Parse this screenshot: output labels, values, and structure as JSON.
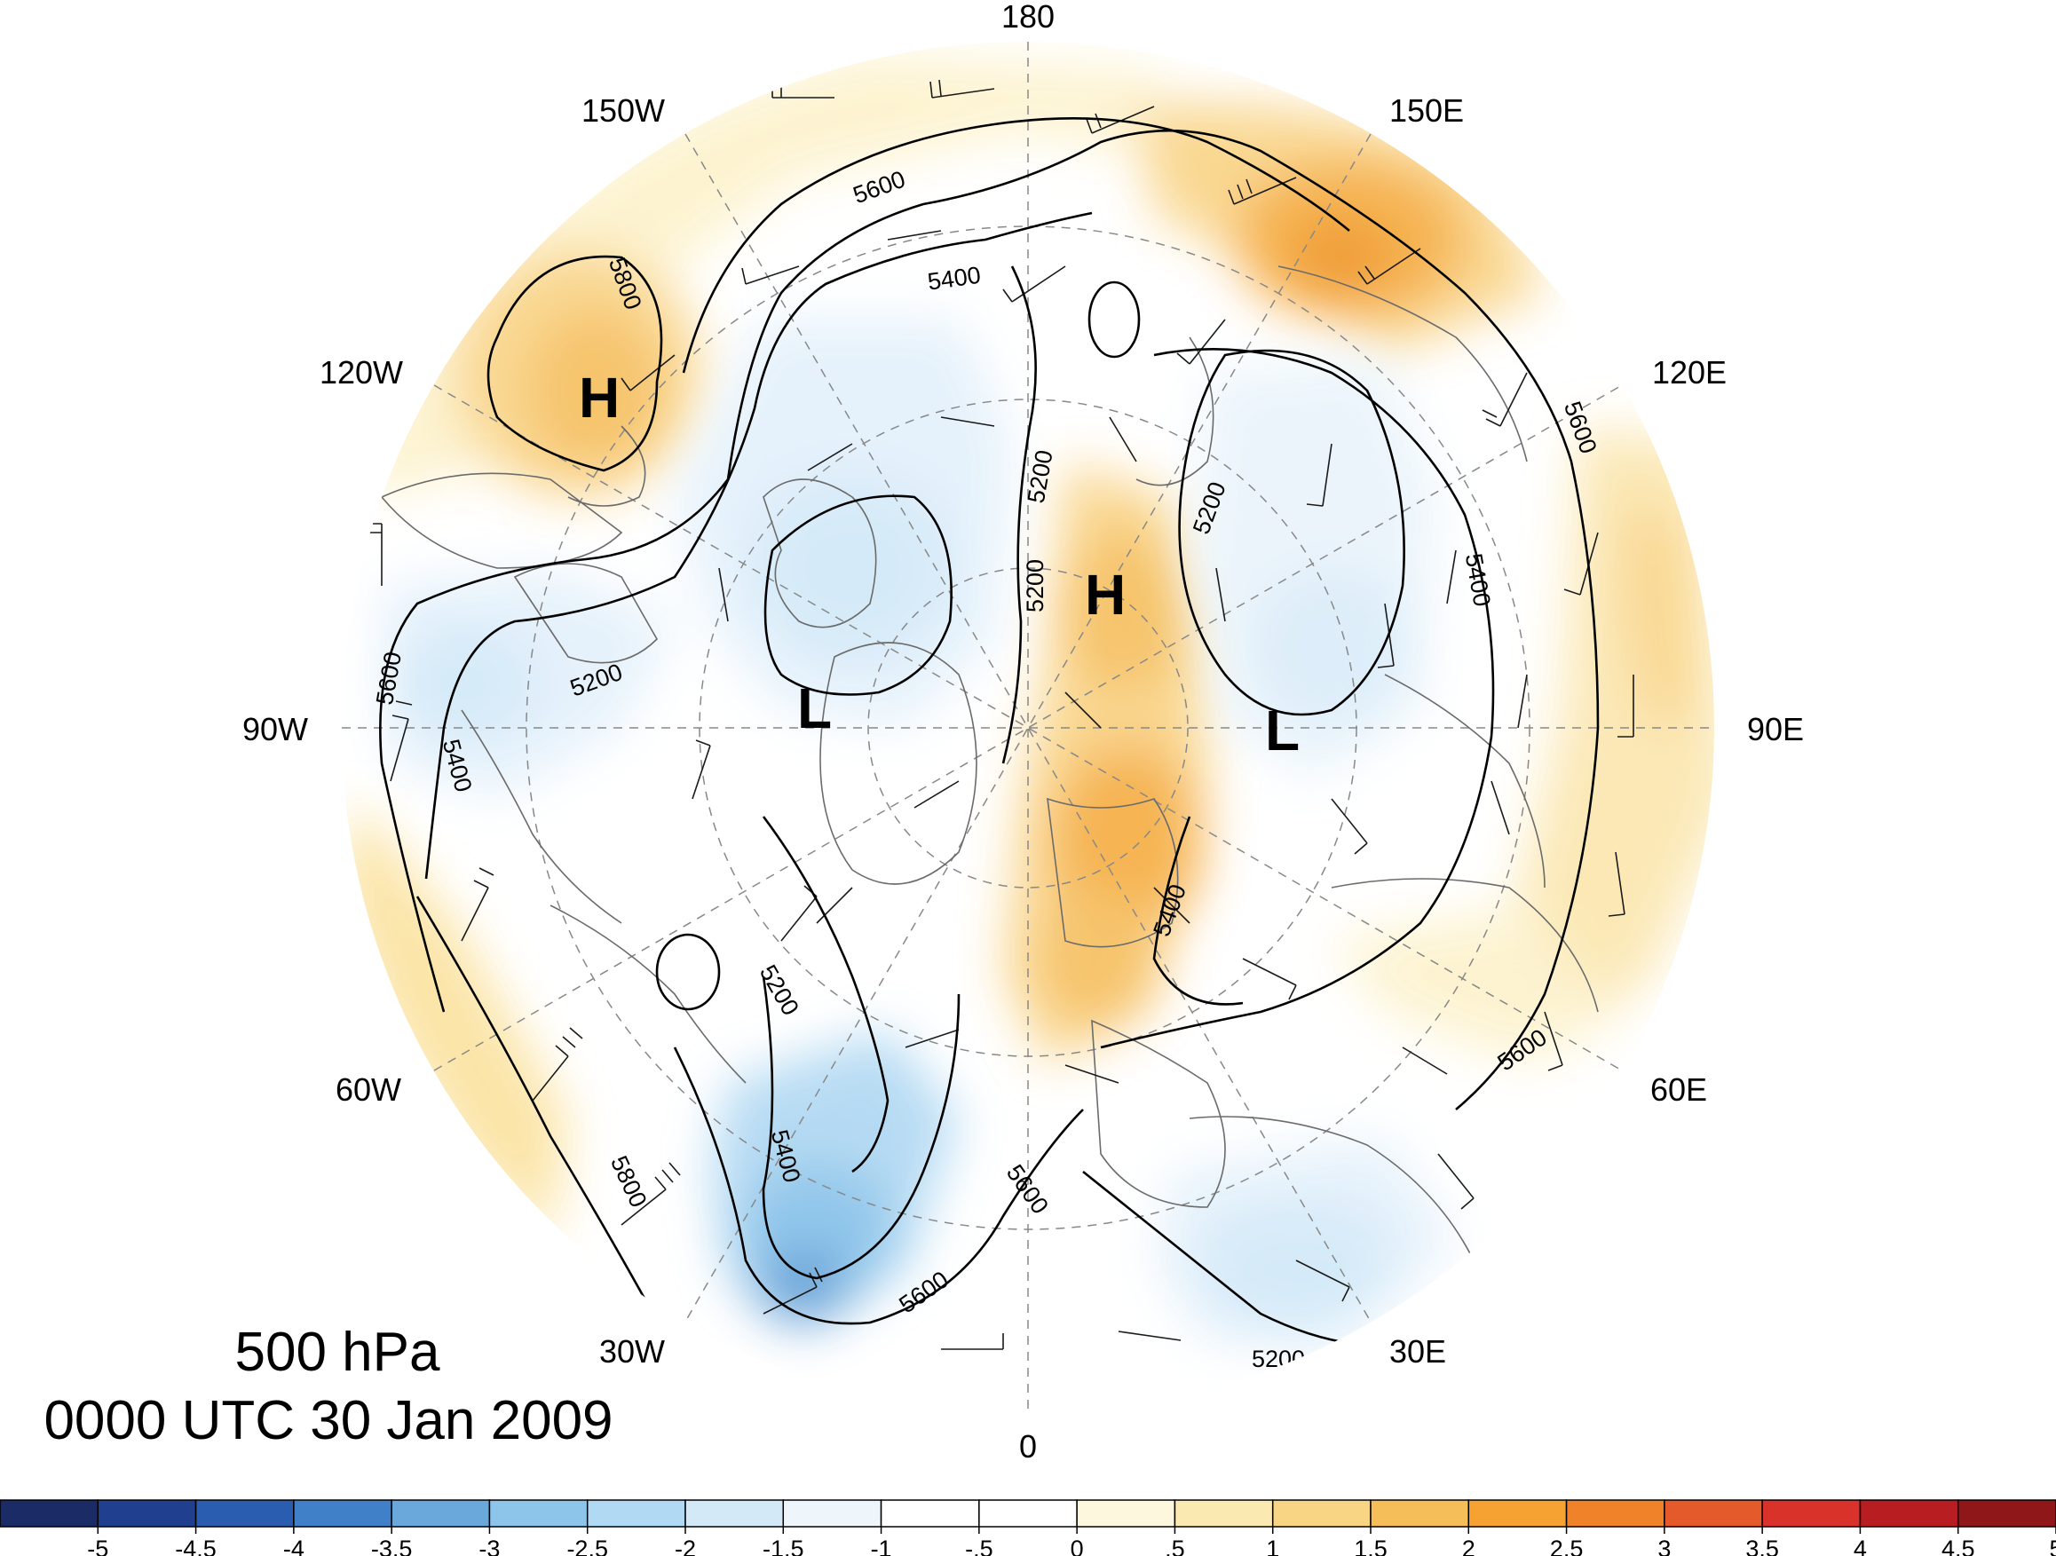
{
  "title": {
    "level": "500 hPa",
    "time": "0000 UTC 30 Jan 2009"
  },
  "longitude_labels": [
    {
      "text": "180",
      "lon": 180
    },
    {
      "text": "150E",
      "lon": 150
    },
    {
      "text": "120E",
      "lon": 120
    },
    {
      "text": "90E",
      "lon": 90
    },
    {
      "text": "60E",
      "lon": 60
    },
    {
      "text": "30E",
      "lon": 30
    },
    {
      "text": "0",
      "lon": 0
    },
    {
      "text": "30W",
      "lon": -30
    },
    {
      "text": "60W",
      "lon": -60
    },
    {
      "text": "90W",
      "lon": -90
    },
    {
      "text": "120W",
      "lon": -120
    },
    {
      "text": "150W",
      "lon": -150
    }
  ],
  "pressure_centers": [
    {
      "type": "H",
      "text": "H",
      "region": "western North America"
    },
    {
      "type": "L",
      "text": "L",
      "region": "Hudson Bay / Baffin"
    },
    {
      "type": "H",
      "text": "H",
      "region": "Arctic Ocean / Kara Sea"
    },
    {
      "type": "L",
      "text": "L",
      "region": "central Siberia"
    }
  ],
  "contour_labels": [
    "5800",
    "5600",
    "5400",
    "5200",
    "5200",
    "5200",
    "5200",
    "5400",
    "5600",
    "5400",
    "5200",
    "5400",
    "5600",
    "5800",
    "5600",
    "5400",
    "5200",
    "5600",
    "5600"
  ],
  "colorbar": {
    "ticks": [
      "-5",
      "-4.5",
      "-4",
      "-3.5",
      "-3",
      "-2.5",
      "-2",
      "-1.5",
      "-1",
      "-.5",
      "0",
      ".5",
      "1",
      "1.5",
      "2",
      "2.5",
      "3",
      "3.5",
      "4",
      "4.5",
      "5"
    ],
    "colors": [
      "#1b2b66",
      "#213f8f",
      "#2a5cb0",
      "#3f80c8",
      "#6aa8dc",
      "#8cc4ea",
      "#b2d9f3",
      "#d3e9f8",
      "#eef6fc",
      "#ffffff",
      "#ffffff",
      "#fdf7dd",
      "#fbe9b2",
      "#f8d585",
      "#f6be58",
      "#f5a233",
      "#f0832a",
      "#e55a2b",
      "#d8322a",
      "#b81d22",
      "#901719"
    ]
  }
}
